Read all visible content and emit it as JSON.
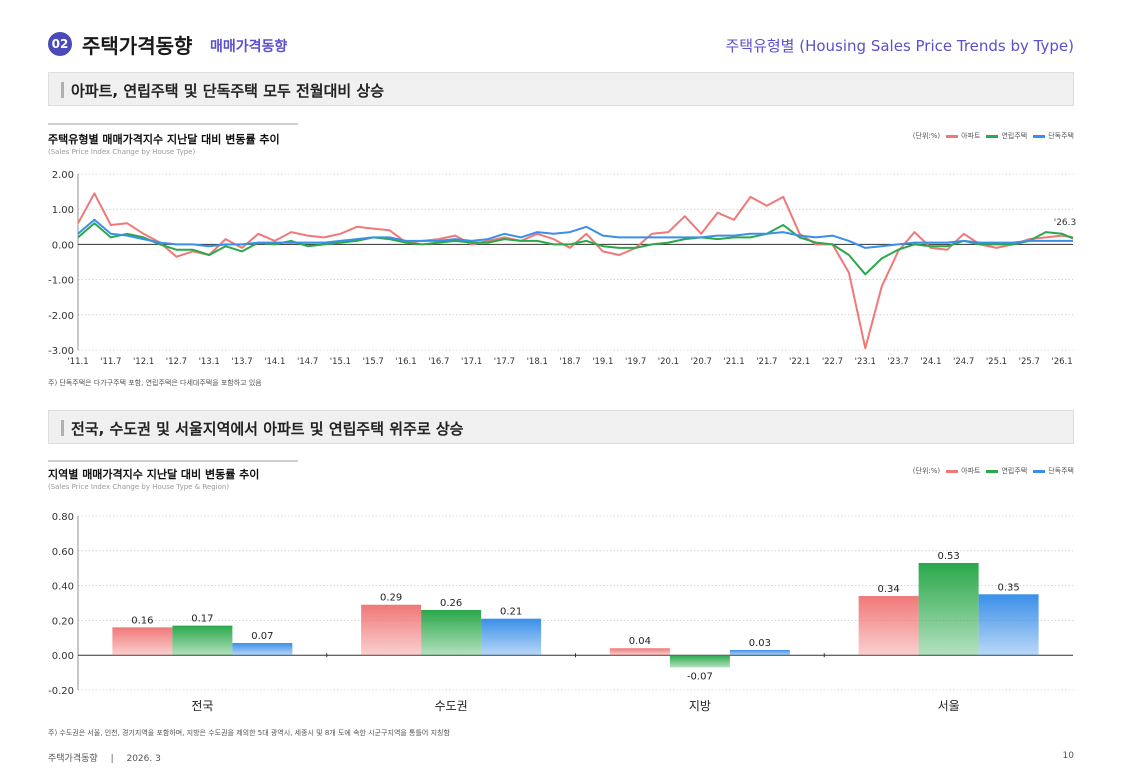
{
  "header": {
    "badge": "02",
    "title": "주택가격동향",
    "subtitle": "매매가격동향",
    "right_title": "주택유형별 (Housing Sales Price Trends by Type)"
  },
  "section1": {
    "heading": "아파트, 연립주택 및 단독주택 모두 전월대비 상승"
  },
  "section2": {
    "heading": "전국, 수도권 및 서울지역에서 아파트 및 연립주택 위주로 상승"
  },
  "legend": {
    "unit": "(단위:%)",
    "apt": "아파트",
    "row": "연립주택",
    "det": "단독주택"
  },
  "colors": {
    "apt": "#f07878",
    "row": "#2aa84a",
    "det": "#3a8fe8"
  },
  "chart1_meta": {
    "title": "주택유형별 매매가격지수 지난달 대비 변동률 추이",
    "title_en": "(Sales Price Index Change by House Type)",
    "end_label": "'26.3",
    "note": "주) 단독주택은 다가구주택 포함, 연립주택은 다세대주택을 포함하고 있음"
  },
  "chart2_meta": {
    "title": "지역별 매매가격지수 지난달 대비 변동률 추이",
    "title_en": "(Sales Price Index Change by House Type & Region)",
    "note": "주) 수도권은 서울, 인천, 경기지역을 포함하며, 지방은 수도권을 제외한 5대 광역시, 세종시 및 8개 도에 속한 시군구지역을 통틀어 지칭함"
  },
  "footer": {
    "left": "주택가격동향",
    "sep": "|",
    "date": "2026. 3",
    "page": "10"
  },
  "chart_data": [
    {
      "type": "line",
      "ylim": [
        -3.0,
        2.0
      ],
      "yticks": [
        "2.00",
        "1.00",
        "0.00",
        "-1.00",
        "-2.00",
        "-3.00"
      ],
      "ytick_values": [
        2,
        1,
        0,
        -1,
        -2,
        -3
      ],
      "xtick_labels": [
        "'11.1",
        "'11.7",
        "'12.1",
        "'12.7",
        "'13.1",
        "'13.7",
        "'14.1",
        "'14.7",
        "'15.1",
        "'15.7",
        "'16.1",
        "'16.7",
        "'17.1",
        "'17.7",
        "'18.1",
        "'18.7",
        "'19.1",
        "'19.7",
        "'20.1",
        "'20.7",
        "'21.1",
        "'21.7",
        "'22.1",
        "'22.7",
        "'23.1",
        "'23.7",
        "'24.1",
        "'24.7",
        "'25.1",
        "'25.7",
        "'26.1"
      ],
      "x_start": "2011-01",
      "x_end": "2026-03",
      "series": [
        {
          "name": "아파트",
          "color_key": "apt",
          "points": [
            [
              "2011-01",
              0.6
            ],
            [
              "2011-04",
              1.45
            ],
            [
              "2011-07",
              0.55
            ],
            [
              "2011-10",
              0.6
            ],
            [
              "2012-01",
              0.3
            ],
            [
              "2012-04",
              0.05
            ],
            [
              "2012-07",
              -0.35
            ],
            [
              "2012-10",
              -0.2
            ],
            [
              "2013-01",
              -0.3
            ],
            [
              "2013-04",
              0.15
            ],
            [
              "2013-07",
              -0.1
            ],
            [
              "2013-10",
              0.3
            ],
            [
              "2014-01",
              0.1
            ],
            [
              "2014-04",
              0.35
            ],
            [
              "2014-07",
              0.25
            ],
            [
              "2014-10",
              0.2
            ],
            [
              "2015-01",
              0.3
            ],
            [
              "2015-04",
              0.5
            ],
            [
              "2015-07",
              0.45
            ],
            [
              "2015-10",
              0.4
            ],
            [
              "2016-01",
              0.05
            ],
            [
              "2016-04",
              0.1
            ],
            [
              "2016-07",
              0.15
            ],
            [
              "2016-10",
              0.25
            ],
            [
              "2017-01",
              0.0
            ],
            [
              "2017-04",
              0.1
            ],
            [
              "2017-07",
              0.2
            ],
            [
              "2017-10",
              0.1
            ],
            [
              "2018-01",
              0.3
            ],
            [
              "2018-04",
              0.15
            ],
            [
              "2018-07",
              -0.1
            ],
            [
              "2018-10",
              0.3
            ],
            [
              "2019-01",
              -0.2
            ],
            [
              "2019-04",
              -0.3
            ],
            [
              "2019-07",
              -0.1
            ],
            [
              "2019-10",
              0.3
            ],
            [
              "2020-01",
              0.35
            ],
            [
              "2020-04",
              0.8
            ],
            [
              "2020-07",
              0.3
            ],
            [
              "2020-10",
              0.9
            ],
            [
              "2021-01",
              0.7
            ],
            [
              "2021-04",
              1.35
            ],
            [
              "2021-07",
              1.1
            ],
            [
              "2021-10",
              1.35
            ],
            [
              "2022-01",
              0.3
            ],
            [
              "2022-04",
              0.0
            ],
            [
              "2022-07",
              0.0
            ],
            [
              "2022-10",
              -0.8
            ],
            [
              "2023-01",
              -2.95
            ],
            [
              "2023-04",
              -1.2
            ],
            [
              "2023-07",
              -0.2
            ],
            [
              "2023-10",
              0.35
            ],
            [
              "2024-01",
              -0.1
            ],
            [
              "2024-04",
              -0.15
            ],
            [
              "2024-07",
              0.3
            ],
            [
              "2024-10",
              0.0
            ],
            [
              "2025-01",
              -0.1
            ],
            [
              "2025-04",
              0.0
            ],
            [
              "2025-07",
              0.15
            ],
            [
              "2025-10",
              0.2
            ],
            [
              "2026-01",
              0.25
            ],
            [
              "2026-03",
              0.2
            ]
          ]
        },
        {
          "name": "연립주택",
          "color_key": "row",
          "points": [
            [
              "2011-01",
              0.2
            ],
            [
              "2011-04",
              0.6
            ],
            [
              "2011-07",
              0.2
            ],
            [
              "2011-10",
              0.3
            ],
            [
              "2012-01",
              0.2
            ],
            [
              "2012-04",
              0.0
            ],
            [
              "2012-07",
              -0.15
            ],
            [
              "2012-10",
              -0.15
            ],
            [
              "2013-01",
              -0.3
            ],
            [
              "2013-04",
              -0.05
            ],
            [
              "2013-07",
              -0.2
            ],
            [
              "2013-10",
              0.05
            ],
            [
              "2014-01",
              0.0
            ],
            [
              "2014-04",
              0.1
            ],
            [
              "2014-07",
              -0.05
            ],
            [
              "2014-10",
              0.0
            ],
            [
              "2015-01",
              0.05
            ],
            [
              "2015-04",
              0.1
            ],
            [
              "2015-07",
              0.2
            ],
            [
              "2015-10",
              0.15
            ],
            [
              "2016-01",
              0.05
            ],
            [
              "2016-04",
              0.0
            ],
            [
              "2016-07",
              0.05
            ],
            [
              "2016-10",
              0.1
            ],
            [
              "2017-01",
              0.05
            ],
            [
              "2017-04",
              0.05
            ],
            [
              "2017-07",
              0.15
            ],
            [
              "2017-10",
              0.1
            ],
            [
              "2018-01",
              0.1
            ],
            [
              "2018-04",
              0.0
            ],
            [
              "2018-07",
              0.0
            ],
            [
              "2018-10",
              0.1
            ],
            [
              "2019-01",
              -0.05
            ],
            [
              "2019-04",
              -0.1
            ],
            [
              "2019-07",
              -0.1
            ],
            [
              "2019-10",
              0.0
            ],
            [
              "2020-01",
              0.05
            ],
            [
              "2020-04",
              0.15
            ],
            [
              "2020-07",
              0.2
            ],
            [
              "2020-10",
              0.15
            ],
            [
              "2021-01",
              0.2
            ],
            [
              "2021-04",
              0.2
            ],
            [
              "2021-07",
              0.3
            ],
            [
              "2021-10",
              0.55
            ],
            [
              "2022-01",
              0.2
            ],
            [
              "2022-04",
              0.05
            ],
            [
              "2022-07",
              0.0
            ],
            [
              "2022-10",
              -0.3
            ],
            [
              "2023-01",
              -0.85
            ],
            [
              "2023-04",
              -0.4
            ],
            [
              "2023-07",
              -0.15
            ],
            [
              "2023-10",
              0.0
            ],
            [
              "2024-01",
              -0.05
            ],
            [
              "2024-04",
              -0.05
            ],
            [
              "2024-07",
              0.1
            ],
            [
              "2024-10",
              0.0
            ],
            [
              "2025-01",
              0.0
            ],
            [
              "2025-04",
              0.0
            ],
            [
              "2025-07",
              0.1
            ],
            [
              "2025-10",
              0.35
            ],
            [
              "2026-01",
              0.3
            ],
            [
              "2026-03",
              0.17
            ]
          ]
        },
        {
          "name": "단독주택",
          "color_key": "det",
          "points": [
            [
              "2011-01",
              0.3
            ],
            [
              "2011-04",
              0.7
            ],
            [
              "2011-07",
              0.3
            ],
            [
              "2011-10",
              0.25
            ],
            [
              "2012-01",
              0.15
            ],
            [
              "2012-04",
              0.05
            ],
            [
              "2012-07",
              0.0
            ],
            [
              "2012-10",
              0.0
            ],
            [
              "2013-01",
              -0.05
            ],
            [
              "2013-04",
              0.0
            ],
            [
              "2013-07",
              0.0
            ],
            [
              "2013-10",
              0.05
            ],
            [
              "2014-01",
              0.05
            ],
            [
              "2014-04",
              0.05
            ],
            [
              "2014-07",
              0.05
            ],
            [
              "2014-10",
              0.05
            ],
            [
              "2015-01",
              0.1
            ],
            [
              "2015-04",
              0.15
            ],
            [
              "2015-07",
              0.2
            ],
            [
              "2015-10",
              0.2
            ],
            [
              "2016-01",
              0.1
            ],
            [
              "2016-04",
              0.1
            ],
            [
              "2016-07",
              0.1
            ],
            [
              "2016-10",
              0.15
            ],
            [
              "2017-01",
              0.1
            ],
            [
              "2017-04",
              0.15
            ],
            [
              "2017-07",
              0.3
            ],
            [
              "2017-10",
              0.2
            ],
            [
              "2018-01",
              0.35
            ],
            [
              "2018-04",
              0.3
            ],
            [
              "2018-07",
              0.35
            ],
            [
              "2018-10",
              0.5
            ],
            [
              "2019-01",
              0.25
            ],
            [
              "2019-04",
              0.2
            ],
            [
              "2019-07",
              0.2
            ],
            [
              "2019-10",
              0.2
            ],
            [
              "2020-01",
              0.2
            ],
            [
              "2020-04",
              0.2
            ],
            [
              "2020-07",
              0.2
            ],
            [
              "2020-10",
              0.25
            ],
            [
              "2021-01",
              0.25
            ],
            [
              "2021-04",
              0.3
            ],
            [
              "2021-07",
              0.3
            ],
            [
              "2021-10",
              0.35
            ],
            [
              "2022-01",
              0.25
            ],
            [
              "2022-04",
              0.2
            ],
            [
              "2022-07",
              0.25
            ],
            [
              "2022-10",
              0.1
            ],
            [
              "2023-01",
              -0.1
            ],
            [
              "2023-04",
              -0.05
            ],
            [
              "2023-07",
              0.0
            ],
            [
              "2023-10",
              0.05
            ],
            [
              "2024-01",
              0.05
            ],
            [
              "2024-04",
              0.05
            ],
            [
              "2024-07",
              0.1
            ],
            [
              "2024-10",
              0.05
            ],
            [
              "2025-01",
              0.05
            ],
            [
              "2025-04",
              0.05
            ],
            [
              "2025-07",
              0.1
            ],
            [
              "2025-10",
              0.1
            ],
            [
              "2026-01",
              0.1
            ],
            [
              "2026-03",
              0.1
            ]
          ]
        }
      ]
    },
    {
      "type": "bar",
      "ylim": [
        -0.2,
        0.8
      ],
      "yticks": [
        "0.80",
        "0.60",
        "0.40",
        "0.20",
        "0.00",
        "-0.20"
      ],
      "ytick_values": [
        0.8,
        0.6,
        0.4,
        0.2,
        0.0,
        -0.2
      ],
      "categories": [
        "전국",
        "수도권",
        "지방",
        "서울"
      ],
      "series": [
        {
          "name": "아파트",
          "color_key": "apt",
          "values": [
            0.16,
            0.29,
            0.04,
            0.34
          ],
          "labels": [
            "0.16",
            "0.29",
            "0.04",
            "0.34"
          ]
        },
        {
          "name": "연립주택",
          "color_key": "row",
          "values": [
            0.17,
            0.26,
            -0.07,
            0.53
          ],
          "labels": [
            "0.17",
            "0.26",
            "-0.07",
            "0.53"
          ]
        },
        {
          "name": "단독주택",
          "color_key": "det",
          "values": [
            0.07,
            0.21,
            0.03,
            0.35
          ],
          "labels": [
            "0.07",
            "0.21",
            "0.03",
            "0.35"
          ]
        }
      ]
    }
  ]
}
